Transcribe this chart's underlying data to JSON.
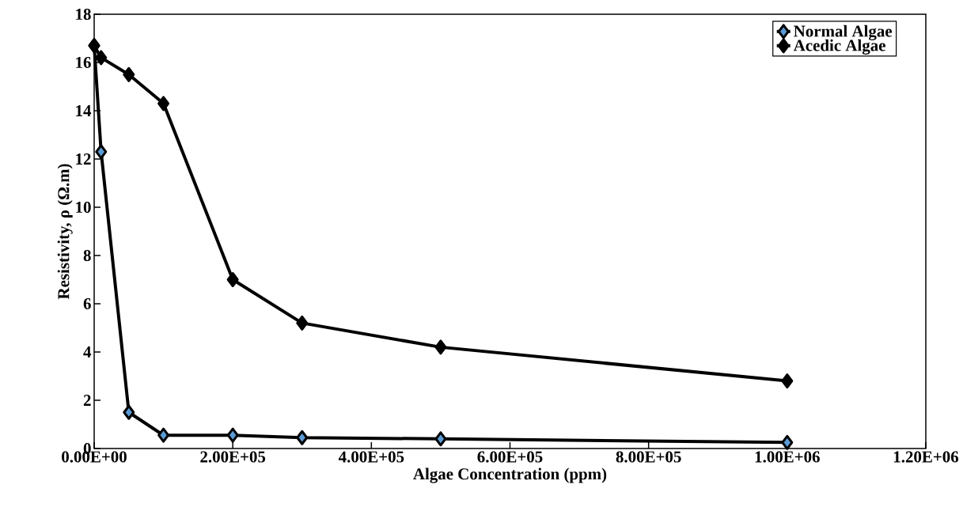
{
  "chart_data": {
    "type": "line",
    "xlabel": "Algae Concentration (ppm)",
    "ylabel": "Resistivity, ρ (Ω.m)",
    "x": [
      0,
      10000,
      50000,
      100000,
      200000,
      300000,
      500000,
      1000000
    ],
    "series": [
      {
        "name": "Normal Algae",
        "color": "#5b9bd5",
        "values": [
          16.7,
          12.3,
          1.5,
          0.55,
          0.55,
          0.45,
          0.4,
          0.25
        ]
      },
      {
        "name": "Acedic Algae",
        "color": "#000000",
        "values": [
          16.7,
          16.2,
          15.5,
          14.3,
          7.0,
          5.2,
          4.2,
          2.8
        ]
      }
    ],
    "xlim": [
      0,
      1200000
    ],
    "ylim": [
      0,
      18
    ],
    "xticks": [
      {
        "value": 0,
        "label": "0.00E+00"
      },
      {
        "value": 200000,
        "label": "2.00E+05"
      },
      {
        "value": 400000,
        "label": "4.00E+05"
      },
      {
        "value": 600000,
        "label": "6.00E+05"
      },
      {
        "value": 800000,
        "label": "8.00E+05"
      },
      {
        "value": 1000000,
        "label": "1.00E+06"
      },
      {
        "value": 1200000,
        "label": "1.20E+06"
      }
    ],
    "yticks": [
      0,
      2,
      4,
      6,
      8,
      10,
      12,
      14,
      16,
      18
    ],
    "legend": "top right",
    "marker": "diamond",
    "line_style": "solid",
    "grid": false
  }
}
